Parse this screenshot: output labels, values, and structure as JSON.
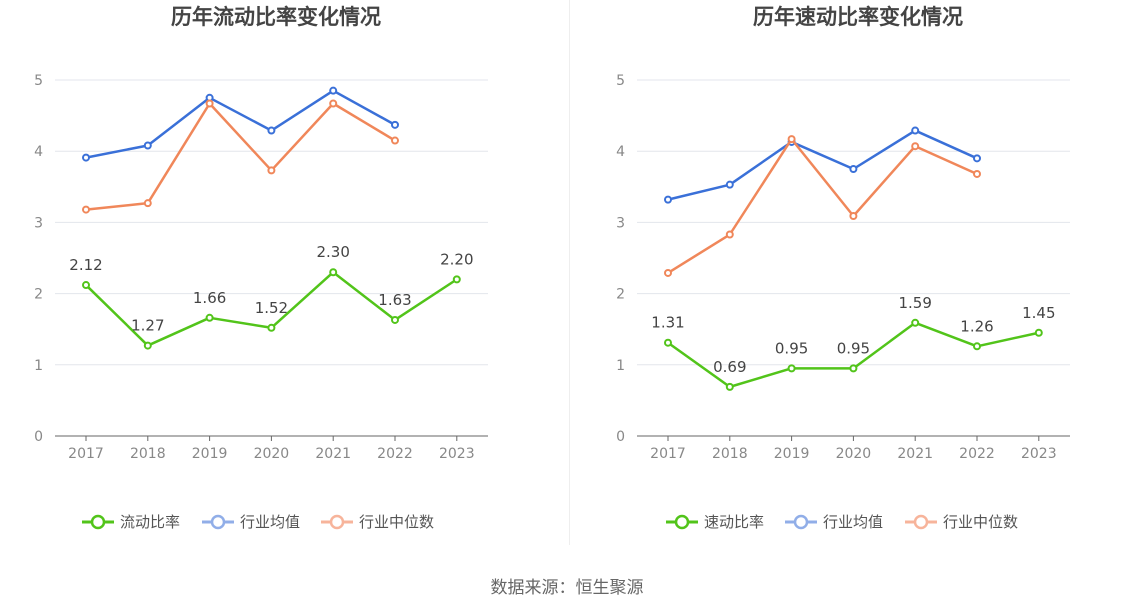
{
  "footer": {
    "source": "数据来源：恒生聚源"
  },
  "colors": {
    "main": "#52c41a",
    "avg": "#3a70d8",
    "median": "#f0875a",
    "avg_legend": "#91aee8",
    "median_legend": "#f7b49b"
  },
  "chart_data": [
    {
      "type": "line",
      "title": "历年流动比率变化情况",
      "categories": [
        "2017",
        "2018",
        "2019",
        "2020",
        "2021",
        "2022",
        "2023"
      ],
      "ylim": [
        0,
        5
      ],
      "yticks": [
        "0",
        "1",
        "2",
        "3",
        "4",
        "5"
      ],
      "grid": true,
      "legend": "bottom",
      "series": [
        {
          "name": "流动比率",
          "values": [
            2.12,
            1.27,
            1.66,
            1.52,
            2.3,
            1.63,
            2.2
          ],
          "labels": [
            "2.12",
            "1.27",
            "1.66",
            "1.52",
            "2.30",
            "1.63",
            "2.20"
          ]
        },
        {
          "name": "行业均值",
          "values": [
            3.91,
            4.08,
            4.75,
            4.29,
            4.85,
            4.37,
            null
          ]
        },
        {
          "name": "行业中位数",
          "values": [
            3.18,
            3.27,
            4.67,
            3.73,
            4.67,
            4.15,
            null
          ]
        }
      ]
    },
    {
      "type": "line",
      "title": "历年速动比率变化情况",
      "categories": [
        "2017",
        "2018",
        "2019",
        "2020",
        "2021",
        "2022",
        "2023"
      ],
      "ylim": [
        0,
        5
      ],
      "yticks": [
        "0",
        "1",
        "2",
        "3",
        "4",
        "5"
      ],
      "grid": true,
      "legend": "bottom",
      "series": [
        {
          "name": "速动比率",
          "values": [
            1.31,
            0.69,
            0.95,
            0.95,
            1.59,
            1.26,
            1.45
          ],
          "labels": [
            "1.31",
            "0.69",
            "0.95",
            "0.95",
            "1.59",
            "1.26",
            "1.45"
          ]
        },
        {
          "name": "行业均值",
          "values": [
            3.32,
            3.53,
            4.13,
            3.75,
            4.29,
            3.9,
            null
          ]
        },
        {
          "name": "行业中位数",
          "values": [
            2.29,
            2.83,
            4.17,
            3.09,
            4.07,
            3.68,
            null
          ]
        }
      ]
    }
  ]
}
